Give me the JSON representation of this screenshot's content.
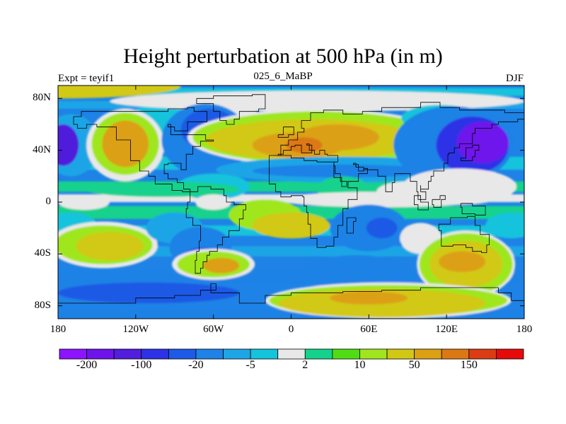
{
  "title": "Height perturbation at 500 hPa (in m)",
  "left_label": "Expt = teyif1",
  "center_label": "025_6_MaBP",
  "right_label": "DJF",
  "map": {
    "projection": "cylindrical-equidistant",
    "lon_range": [
      -180,
      180
    ],
    "lat_range": [
      -90,
      90
    ],
    "lon_ticks": [
      {
        "value": -180,
        "label": "180"
      },
      {
        "value": -120,
        "label": "120W"
      },
      {
        "value": -60,
        "label": "60W"
      },
      {
        "value": 0,
        "label": "0"
      },
      {
        "value": 60,
        "label": "60E"
      },
      {
        "value": 120,
        "label": "120E"
      },
      {
        "value": 180,
        "label": "180"
      }
    ],
    "lat_ticks": [
      {
        "value": 80,
        "label": "80N"
      },
      {
        "value": 40,
        "label": "40N"
      },
      {
        "value": 0,
        "label": "0"
      },
      {
        "value": -40,
        "label": "40S"
      },
      {
        "value": -80,
        "label": "80S"
      }
    ]
  },
  "colorbar": {
    "colors": [
      "#8c14ff",
      "#6e14eb",
      "#501edc",
      "#2d32e6",
      "#1e5ae6",
      "#1e82e6",
      "#1ea5e6",
      "#14c3dc",
      "#e8e8e8",
      "#14d28c",
      "#50dc14",
      "#a0e61e",
      "#d2c814",
      "#dca014",
      "#dc7814",
      "#dc3c14",
      "#e60a0a"
    ],
    "labels": [
      {
        "after_color": 1,
        "text": "-200"
      },
      {
        "after_color": 3,
        "text": "-100"
      },
      {
        "after_color": 5,
        "text": "-20"
      },
      {
        "after_color": 7,
        "text": "-5"
      },
      {
        "after_color": 9,
        "text": "2"
      },
      {
        "after_color": 11,
        "text": "10"
      },
      {
        "after_color": 13,
        "text": "50"
      },
      {
        "after_color": 15,
        "text": "150"
      }
    ]
  },
  "field_blobs": [
    {
      "lon": -180,
      "lat": 90,
      "rx": 95,
      "ry": 10,
      "color": "#d2c814"
    },
    {
      "lon": -40,
      "lat": 66,
      "rx": 14,
      "ry": 12,
      "color": "#e8e8e8"
    },
    {
      "lon": -90,
      "lat": 58,
      "rx": 40,
      "ry": 20,
      "color": "#14c3dc"
    },
    {
      "lon": 20,
      "lat": 78,
      "rx": 160,
      "ry": 8,
      "color": "#e8e8e8"
    },
    {
      "lon": -170,
      "lat": 44,
      "rx": 22,
      "ry": 24,
      "color": "#1ea5e6"
    },
    {
      "lon": -176,
      "lat": 44,
      "rx": 12,
      "ry": 16,
      "color": "#501edc"
    },
    {
      "lon": -128,
      "lat": 44,
      "rx": 30,
      "ry": 28,
      "color": "#e8e8e8"
    },
    {
      "lon": -128,
      "lat": 45,
      "rx": 26,
      "ry": 24,
      "color": "#a0e61e"
    },
    {
      "lon": -128,
      "lat": 45,
      "rx": 18,
      "ry": 18,
      "color": "#dca014"
    },
    {
      "lon": -66,
      "lat": 48,
      "rx": 34,
      "ry": 28,
      "color": "#1e82e6"
    },
    {
      "lon": -63,
      "lat": 56,
      "rx": 22,
      "ry": 16,
      "color": "#1e5ae6"
    },
    {
      "lon": -60,
      "lat": 12,
      "rx": 28,
      "ry": 10,
      "color": "#14c3dc"
    },
    {
      "lon": 20,
      "lat": 50,
      "rx": 100,
      "ry": 22,
      "color": "#e8e8e8"
    },
    {
      "lon": 20,
      "lat": 50,
      "rx": 96,
      "ry": 20,
      "color": "#a0e61e"
    },
    {
      "lon": 16,
      "lat": 48,
      "rx": 82,
      "ry": 16,
      "color": "#d2c814"
    },
    {
      "lon": 6,
      "lat": 44,
      "rx": 36,
      "ry": 10,
      "color": "#dca014"
    },
    {
      "lon": 36,
      "lat": 50,
      "rx": 32,
      "ry": 10,
      "color": "#dca014"
    },
    {
      "lon": 10,
      "lat": 44,
      "rx": 14,
      "ry": 6,
      "color": "#dc7814"
    },
    {
      "lon": 42,
      "lat": 25,
      "rx": 100,
      "ry": 10,
      "color": "#1ea5e6"
    },
    {
      "lon": 40,
      "lat": 24,
      "rx": 70,
      "ry": 5,
      "color": "#1e82e6"
    },
    {
      "lon": 115,
      "lat": 65,
      "rx": 30,
      "ry": 10,
      "color": "#14c3dc"
    },
    {
      "lon": 125,
      "lat": 44,
      "rx": 46,
      "ry": 30,
      "color": "#1e82e6"
    },
    {
      "lon": 140,
      "lat": 44,
      "rx": 28,
      "ry": 22,
      "color": "#2d32e6"
    },
    {
      "lon": 148,
      "lat": 46,
      "rx": 20,
      "ry": 16,
      "color": "#6e14eb"
    },
    {
      "lon": 130,
      "lat": 12,
      "rx": 44,
      "ry": 14,
      "color": "#e8e8e8"
    },
    {
      "lon": 90,
      "lat": 8,
      "rx": 24,
      "ry": 8,
      "color": "#e8e8e8"
    },
    {
      "lon": 40,
      "lat": 10,
      "rx": 20,
      "ry": 10,
      "color": "#14d28c"
    },
    {
      "lon": -100,
      "lat": 10,
      "rx": 60,
      "ry": 6,
      "color": "#14d28c"
    },
    {
      "lon": -160,
      "lat": 0,
      "rx": 20,
      "ry": 6,
      "color": "#e8e8e8"
    },
    {
      "lon": -60,
      "lat": 0,
      "rx": 14,
      "ry": 6,
      "color": "#e8e8e8"
    },
    {
      "lon": 70,
      "lat": 2,
      "rx": 80,
      "ry": 6,
      "color": "#e8e8e8"
    },
    {
      "lon": -170,
      "lat": -18,
      "rx": 20,
      "ry": 10,
      "color": "#14c3dc"
    },
    {
      "lon": 170,
      "lat": -18,
      "rx": 20,
      "ry": 10,
      "color": "#14c3dc"
    },
    {
      "lon": -145,
      "lat": -33,
      "rx": 42,
      "ry": 18,
      "color": "#e8e8e8"
    },
    {
      "lon": -145,
      "lat": -33,
      "rx": 38,
      "ry": 15,
      "color": "#a0e61e"
    },
    {
      "lon": -140,
      "lat": -34,
      "rx": 26,
      "ry": 11,
      "color": "#d2c814"
    },
    {
      "lon": -90,
      "lat": -20,
      "rx": 22,
      "ry": 12,
      "color": "#1ea5e6"
    },
    {
      "lon": -70,
      "lat": -35,
      "rx": 24,
      "ry": 16,
      "color": "#1e82e6"
    },
    {
      "lon": -68,
      "lat": -43,
      "rx": 16,
      "ry": 8,
      "color": "#1e5ae6"
    },
    {
      "lon": -60,
      "lat": -48,
      "rx": 32,
      "ry": 12,
      "color": "#e8e8e8"
    },
    {
      "lon": -60,
      "lat": -48,
      "rx": 28,
      "ry": 10,
      "color": "#a0e61e"
    },
    {
      "lon": -54,
      "lat": -49,
      "rx": 14,
      "ry": 6,
      "color": "#dca014"
    },
    {
      "lon": -20,
      "lat": -10,
      "rx": 28,
      "ry": 12,
      "color": "#a0e61e"
    },
    {
      "lon": 0,
      "lat": -18,
      "rx": 30,
      "ry": 10,
      "color": "#d2c814"
    },
    {
      "lon": -110,
      "lat": -70,
      "rx": 70,
      "ry": 8,
      "color": "#1e5ae6"
    },
    {
      "lon": 50,
      "lat": -55,
      "rx": 42,
      "ry": 14,
      "color": "#1e82e6"
    },
    {
      "lon": 60,
      "lat": -20,
      "rx": 30,
      "ry": 18,
      "color": "#1e82e6"
    },
    {
      "lon": 70,
      "lat": -20,
      "rx": 12,
      "ry": 8,
      "color": "#1e5ae6"
    },
    {
      "lon": 100,
      "lat": -28,
      "rx": 16,
      "ry": 12,
      "color": "#e8e8e8"
    },
    {
      "lon": 135,
      "lat": -48,
      "rx": 38,
      "ry": 26,
      "color": "#e8e8e8"
    },
    {
      "lon": 135,
      "lat": -48,
      "rx": 36,
      "ry": 24,
      "color": "#a0e61e"
    },
    {
      "lon": 135,
      "lat": -48,
      "rx": 28,
      "ry": 18,
      "color": "#d2c814"
    },
    {
      "lon": 132,
      "lat": -46,
      "rx": 18,
      "ry": 8,
      "color": "#dca014"
    },
    {
      "lon": 75,
      "lat": -76,
      "rx": 95,
      "ry": 14,
      "color": "#e8e8e8"
    },
    {
      "lon": 75,
      "lat": -76,
      "rx": 92,
      "ry": 12,
      "color": "#a0e61e"
    },
    {
      "lon": 70,
      "lat": -78,
      "rx": 80,
      "ry": 11,
      "color": "#d2c814"
    },
    {
      "lon": 60,
      "lat": -74,
      "rx": 30,
      "ry": 5,
      "color": "#dca014"
    },
    {
      "lon": 40,
      "lat": 2,
      "rx": 14,
      "ry": 4,
      "color": "#e8e8e8"
    }
  ],
  "coastlines": [
    [
      [
        -168,
        66
      ],
      [
        -162,
        70
      ],
      [
        -140,
        70
      ],
      [
        -120,
        70
      ],
      [
        -95,
        72
      ],
      [
        -80,
        73
      ],
      [
        -75,
        70
      ],
      [
        -65,
        62
      ],
      [
        -78,
        62
      ],
      [
        -80,
        55
      ],
      [
        -90,
        58
      ],
      [
        -95,
        60
      ],
      [
        -93,
        52
      ],
      [
        -80,
        52
      ],
      [
        -66,
        48
      ],
      [
        -60,
        47
      ],
      [
        -70,
        43
      ],
      [
        -76,
        37
      ],
      [
        -81,
        32
      ],
      [
        -81,
        25
      ],
      [
        -85,
        30
      ],
      [
        -95,
        29
      ],
      [
        -98,
        22
      ],
      [
        -95,
        18
      ],
      [
        -88,
        15
      ],
      [
        -83,
        10
      ],
      [
        -78,
        8
      ],
      [
        -84,
        9
      ],
      [
        -92,
        14
      ],
      [
        -105,
        20
      ],
      [
        -110,
        24
      ],
      [
        -117,
        32
      ],
      [
        -124,
        40
      ],
      [
        -124,
        48
      ],
      [
        -135,
        58
      ],
      [
        -150,
        60
      ],
      [
        -158,
        57
      ],
      [
        -165,
        60
      ],
      [
        -168,
        66
      ]
    ],
    [
      [
        -73,
        80
      ],
      [
        -60,
        82
      ],
      [
        -30,
        83
      ],
      [
        -20,
        80
      ],
      [
        -20,
        72
      ],
      [
        -25,
        70
      ],
      [
        -40,
        64
      ],
      [
        -44,
        60
      ],
      [
        -50,
        63
      ],
      [
        -55,
        70
      ],
      [
        -60,
        76
      ],
      [
        -73,
        80
      ]
    ],
    [
      [
        -78,
        8
      ],
      [
        -72,
        12
      ],
      [
        -62,
        10
      ],
      [
        -52,
        5
      ],
      [
        -50,
        0
      ],
      [
        -44,
        -2
      ],
      [
        -35,
        -6
      ],
      [
        -37,
        -13
      ],
      [
        -40,
        -22
      ],
      [
        -48,
        -27
      ],
      [
        -53,
        -33
      ],
      [
        -57,
        -38
      ],
      [
        -63,
        -41
      ],
      [
        -65,
        -46
      ],
      [
        -68,
        -51
      ],
      [
        -70,
        -55
      ],
      [
        -74,
        -52
      ],
      [
        -74,
        -45
      ],
      [
        -73,
        -38
      ],
      [
        -71,
        -30
      ],
      [
        -70,
        -18
      ],
      [
        -76,
        -12
      ],
      [
        -81,
        -5
      ],
      [
        -80,
        0
      ],
      [
        -78,
        8
      ]
    ],
    [
      [
        -10,
        36
      ],
      [
        -8,
        44
      ],
      [
        -2,
        48
      ],
      [
        5,
        54
      ],
      [
        10,
        57
      ],
      [
        8,
        63
      ],
      [
        15,
        69
      ],
      [
        25,
        71
      ],
      [
        40,
        68
      ],
      [
        55,
        70
      ],
      [
        70,
        73
      ],
      [
        80,
        73
      ],
      [
        100,
        77
      ],
      [
        115,
        73
      ],
      [
        130,
        71
      ],
      [
        150,
        71
      ],
      [
        165,
        69
      ],
      [
        180,
        67
      ],
      [
        180,
        64
      ],
      [
        175,
        62
      ],
      [
        160,
        60
      ],
      [
        155,
        57
      ],
      [
        142,
        53
      ],
      [
        140,
        45
      ],
      [
        130,
        42
      ],
      [
        126,
        38
      ],
      [
        122,
        37
      ],
      [
        121,
        30
      ],
      [
        118,
        24
      ],
      [
        110,
        20
      ],
      [
        108,
        16
      ],
      [
        106,
        10
      ],
      [
        100,
        13
      ],
      [
        100,
        8
      ],
      [
        104,
        2
      ],
      [
        98,
        8
      ],
      [
        97,
        16
      ],
      [
        92,
        22
      ],
      [
        88,
        22
      ],
      [
        80,
        15
      ],
      [
        78,
        8
      ],
      [
        73,
        20
      ],
      [
        67,
        25
      ],
      [
        57,
        25
      ],
      [
        56,
        27
      ],
      [
        50,
        30
      ],
      [
        48,
        29
      ],
      [
        52,
        24
      ],
      [
        56,
        26
      ],
      [
        59,
        22
      ],
      [
        52,
        16
      ],
      [
        44,
        13
      ],
      [
        43,
        16
      ],
      [
        38,
        22
      ],
      [
        34,
        28
      ],
      [
        33,
        31
      ],
      [
        36,
        36
      ],
      [
        28,
        37
      ],
      [
        26,
        40
      ],
      [
        22,
        37
      ],
      [
        18,
        40
      ],
      [
        14,
        45
      ],
      [
        12,
        44
      ],
      [
        16,
        38
      ],
      [
        8,
        44
      ],
      [
        3,
        43
      ],
      [
        0,
        40
      ],
      [
        -6,
        37
      ],
      [
        -10,
        36
      ]
    ],
    [
      [
        -10,
        36
      ],
      [
        -17,
        21
      ],
      [
        -17,
        14
      ],
      [
        -12,
        8
      ],
      [
        -8,
        4
      ],
      [
        0,
        5
      ],
      [
        9,
        4
      ],
      [
        10,
        -3
      ],
      [
        12,
        -8
      ],
      [
        13,
        -17
      ],
      [
        15,
        -28
      ],
      [
        20,
        -35
      ],
      [
        27,
        -34
      ],
      [
        33,
        -27
      ],
      [
        36,
        -18
      ],
      [
        40,
        -15
      ],
      [
        40,
        -5
      ],
      [
        44,
        2
      ],
      [
        51,
        11
      ],
      [
        44,
        12
      ],
      [
        39,
        19
      ],
      [
        33,
        27
      ],
      [
        33,
        31
      ],
      [
        20,
        32
      ],
      [
        10,
        34
      ],
      [
        0,
        36
      ],
      [
        -10,
        36
      ]
    ],
    [
      [
        114,
        -22
      ],
      [
        116,
        -34
      ],
      [
        125,
        -33
      ],
      [
        135,
        -35
      ],
      [
        140,
        -38
      ],
      [
        147,
        -39
      ],
      [
        151,
        -33
      ],
      [
        153,
        -25
      ],
      [
        146,
        -18
      ],
      [
        142,
        -11
      ],
      [
        136,
        -12
      ],
      [
        130,
        -12
      ],
      [
        123,
        -17
      ],
      [
        114,
        -22
      ]
    ],
    [
      [
        95,
        5
      ],
      [
        100,
        0
      ],
      [
        106,
        -6
      ],
      [
        98,
        -2
      ],
      [
        95,
        5
      ]
    ],
    [
      [
        109,
        2
      ],
      [
        115,
        5
      ],
      [
        119,
        2
      ],
      [
        116,
        -4
      ],
      [
        110,
        -2
      ],
      [
        109,
        2
      ]
    ],
    [
      [
        131,
        -1
      ],
      [
        140,
        -3
      ],
      [
        150,
        -10
      ],
      [
        142,
        -9
      ],
      [
        132,
        -4
      ],
      [
        131,
        -1
      ]
    ],
    [
      [
        43,
        -12
      ],
      [
        50,
        -15
      ],
      [
        48,
        -24
      ],
      [
        44,
        -24
      ],
      [
        43,
        -12
      ]
    ],
    [
      [
        -10,
        52
      ],
      [
        -6,
        58
      ],
      [
        -2,
        58
      ],
      [
        2,
        52
      ],
      [
        -2,
        50
      ],
      [
        -10,
        52
      ]
    ],
    [
      [
        -180,
        -78
      ],
      [
        -150,
        -78
      ],
      [
        -120,
        -74
      ],
      [
        -90,
        -72
      ],
      [
        -70,
        -68
      ],
      [
        -58,
        -63
      ],
      [
        -62,
        -70
      ],
      [
        -40,
        -78
      ],
      [
        -20,
        -72
      ],
      [
        0,
        -70
      ],
      [
        40,
        -69
      ],
      [
        70,
        -68
      ],
      [
        100,
        -66
      ],
      [
        130,
        -66
      ],
      [
        160,
        -70
      ],
      [
        170,
        -76
      ],
      [
        180,
        -78
      ]
    ],
    [
      [
        140,
        35
      ],
      [
        142,
        40
      ],
      [
        145,
        44
      ],
      [
        140,
        42
      ],
      [
        135,
        34
      ],
      [
        131,
        32
      ],
      [
        140,
        35
      ]
    ]
  ]
}
